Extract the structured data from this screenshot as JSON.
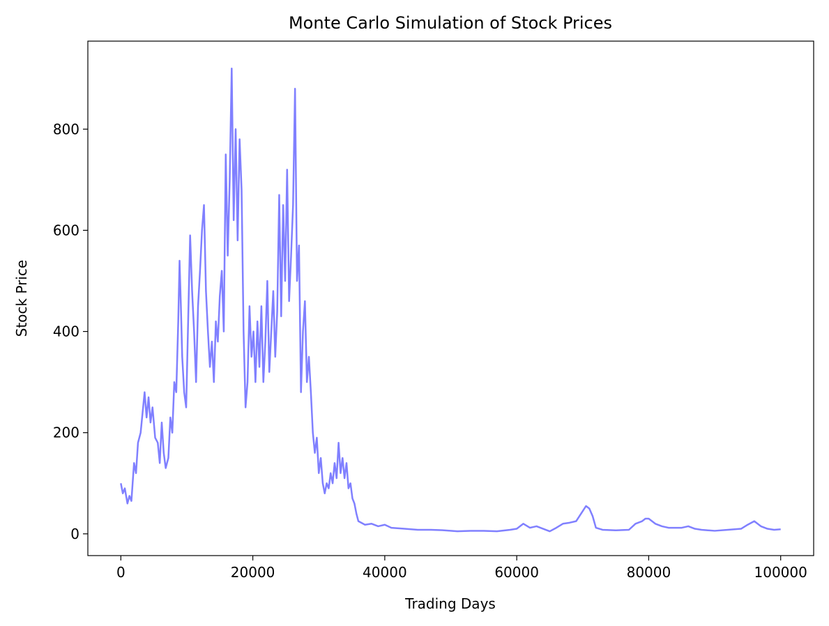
{
  "chart_data": {
    "type": "line",
    "title": "Monte Carlo Simulation of Stock Prices",
    "xlabel": "Trading Days",
    "ylabel": "Stock Price",
    "xlim": [
      -5000,
      105000
    ],
    "ylim": [
      -43,
      974
    ],
    "xticks": [
      0,
      20000,
      40000,
      60000,
      80000,
      100000
    ],
    "yticks": [
      0,
      200,
      400,
      600,
      800
    ],
    "grid": false,
    "series": [
      {
        "name": "Stock Price",
        "color": "#8080ff",
        "x": [
          0,
          300,
          600,
          1000,
          1300,
          1600,
          2000,
          2300,
          2600,
          3000,
          3300,
          3600,
          3900,
          4200,
          4500,
          4800,
          5200,
          5600,
          5900,
          6200,
          6500,
          6800,
          7200,
          7500,
          7800,
          8100,
          8400,
          8700,
          8900,
          9100,
          9300,
          9600,
          9900,
          10200,
          10500,
          10800,
          11100,
          11400,
          11700,
          12000,
          12300,
          12600,
          12900,
          13200,
          13500,
          13800,
          14100,
          14400,
          14700,
          15000,
          15300,
          15600,
          15900,
          16200,
          16500,
          16800,
          17100,
          17400,
          17700,
          18000,
          18300,
          18600,
          18900,
          19200,
          19500,
          19800,
          20100,
          20400,
          20700,
          21000,
          21300,
          21600,
          21900,
          22200,
          22500,
          22800,
          23100,
          23400,
          23700,
          24000,
          24300,
          24600,
          24900,
          25200,
          25500,
          25800,
          26100,
          26400,
          26700,
          27000,
          27300,
          27600,
          27900,
          28200,
          28500,
          28800,
          29100,
          29400,
          29700,
          30000,
          30300,
          30600,
          30900,
          31200,
          31500,
          31800,
          32100,
          32400,
          32700,
          33000,
          33300,
          33600,
          33900,
          34200,
          34500,
          34800,
          35100,
          35400,
          35700,
          36000,
          37000,
          38000,
          39000,
          40000,
          41000,
          43000,
          45000,
          47000,
          49000,
          51000,
          53000,
          55000,
          57000,
          59000,
          60000,
          61000,
          62000,
          63000,
          64000,
          65000,
          66000,
          67000,
          68000,
          69000,
          70000,
          70500,
          71000,
          71500,
          72000,
          73000,
          75000,
          77000,
          78000,
          79000,
          79500,
          80000,
          81000,
          82000,
          83000,
          85000,
          86000,
          87000,
          88000,
          90000,
          92000,
          94000,
          95000,
          96000,
          97000,
          98000,
          99000,
          100000
        ],
        "values": [
          100,
          80,
          90,
          60,
          75,
          65,
          140,
          120,
          180,
          200,
          240,
          280,
          230,
          270,
          220,
          250,
          190,
          180,
          140,
          220,
          160,
          130,
          150,
          230,
          200,
          300,
          280,
          420,
          540,
          450,
          350,
          280,
          250,
          420,
          590,
          480,
          400,
          300,
          450,
          520,
          600,
          650,
          480,
          400,
          330,
          380,
          300,
          420,
          380,
          470,
          520,
          400,
          750,
          550,
          700,
          920,
          620,
          800,
          580,
          780,
          680,
          400,
          250,
          300,
          450,
          350,
          400,
          300,
          420,
          330,
          450,
          300,
          380,
          500,
          320,
          400,
          480,
          350,
          440,
          670,
          430,
          650,
          500,
          720,
          460,
          550,
          650,
          880,
          500,
          570,
          280,
          400,
          460,
          300,
          350,
          280,
          200,
          160,
          190,
          120,
          150,
          100,
          80,
          100,
          90,
          120,
          100,
          140,
          110,
          180,
          120,
          150,
          110,
          140,
          90,
          100,
          70,
          60,
          40,
          25,
          18,
          20,
          15,
          18,
          12,
          10,
          8,
          8,
          7,
          5,
          6,
          6,
          5,
          8,
          10,
          20,
          12,
          15,
          10,
          5,
          12,
          20,
          22,
          25,
          45,
          55,
          50,
          35,
          12,
          8,
          7,
          8,
          20,
          25,
          30,
          30,
          20,
          15,
          12,
          12,
          15,
          10,
          8,
          6,
          8,
          10,
          18,
          25,
          15,
          10,
          8,
          9
        ]
      }
    ]
  }
}
